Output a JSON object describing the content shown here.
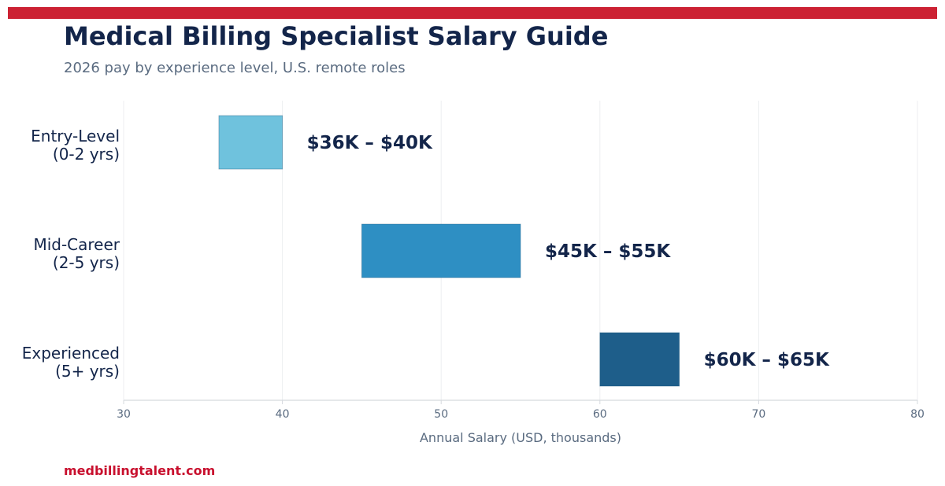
{
  "header": {
    "title": "Medical Billing Specialist Salary Guide",
    "subtitle": "2026 pay by experience level, U.S. remote roles"
  },
  "footer": {
    "source": "medbillingtalent.com"
  },
  "colors": {
    "accent_bar": "#cc2233",
    "title": "#13254a",
    "subtitle": "#5a6b80",
    "footer": "#c8102e"
  },
  "chart_data": {
    "type": "bar",
    "orientation": "horizontal",
    "subtype": "floating-range",
    "title": "",
    "xlabel": "Annual Salary (USD, thousands)",
    "ylabel": "",
    "xlim": [
      30,
      80
    ],
    "xticks": [
      30,
      40,
      50,
      60,
      70,
      80
    ],
    "grid": "vertical",
    "legend": "none",
    "categories": [
      {
        "line1": "Entry-Level",
        "line2": "(0-2 yrs)",
        "low": 36,
        "high": 40,
        "label": "$36K – $40K",
        "color": "#6fc2dd"
      },
      {
        "line1": "Mid-Career",
        "line2": "(2-5 yrs)",
        "low": 45,
        "high": 55,
        "label": "$45K – $55K",
        "color": "#2e8fc3"
      },
      {
        "line1": "Experienced",
        "line2": "(5+ yrs)",
        "low": 60,
        "high": 65,
        "label": "$60K – $65K",
        "color": "#1e5e8a"
      }
    ]
  }
}
